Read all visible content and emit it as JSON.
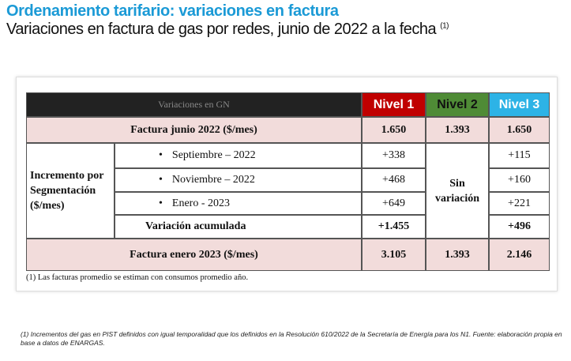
{
  "header": {
    "title": "Ordenamiento tarifario: variaciones en factura",
    "subtitle": "Variaciones en factura de gas por redes, junio de 2022 a la fecha",
    "subtitle_note": "(1)"
  },
  "table": {
    "columns": [
      "Variaciones en GN",
      "Nivel 1",
      "Nivel 2",
      "Nivel 3"
    ],
    "first_row": {
      "label": "Factura junio 2022 ($/mes)",
      "values": [
        "1.650",
        "1.393",
        "1.650"
      ]
    },
    "segmentation": {
      "label": "Incremento por Segmentación ($/mes)",
      "nivel_2": "Sin variación",
      "rows": [
        {
          "label": "Septiembre – 2022",
          "nivel_1": "+338",
          "nivel_3": "+115"
        },
        {
          "label": "Noviembre – 2022",
          "nivel_1": "+468",
          "nivel_3": "+160"
        },
        {
          "label": "Enero - 2023",
          "nivel_1": "+649",
          "nivel_3": "+221"
        },
        {
          "label": "Variación acumulada",
          "nivel_1": "+1.455",
          "nivel_3": "+496"
        }
      ]
    },
    "last_row": {
      "label": "Factura enero 2023 ($/mes)",
      "values": [
        "3.105",
        "1.393",
        "2.146"
      ]
    },
    "note": "(1) Las facturas promedio se estiman con consumos promedio año."
  },
  "footnote": "(1) Incrementos del gas en PIST definidos con igual temporalidad que los definidos en la Resolución 610/2022 de la Secretaría de Energía para los N1. Fuente: elaboración propia en base a datos de ENARGAS."
}
